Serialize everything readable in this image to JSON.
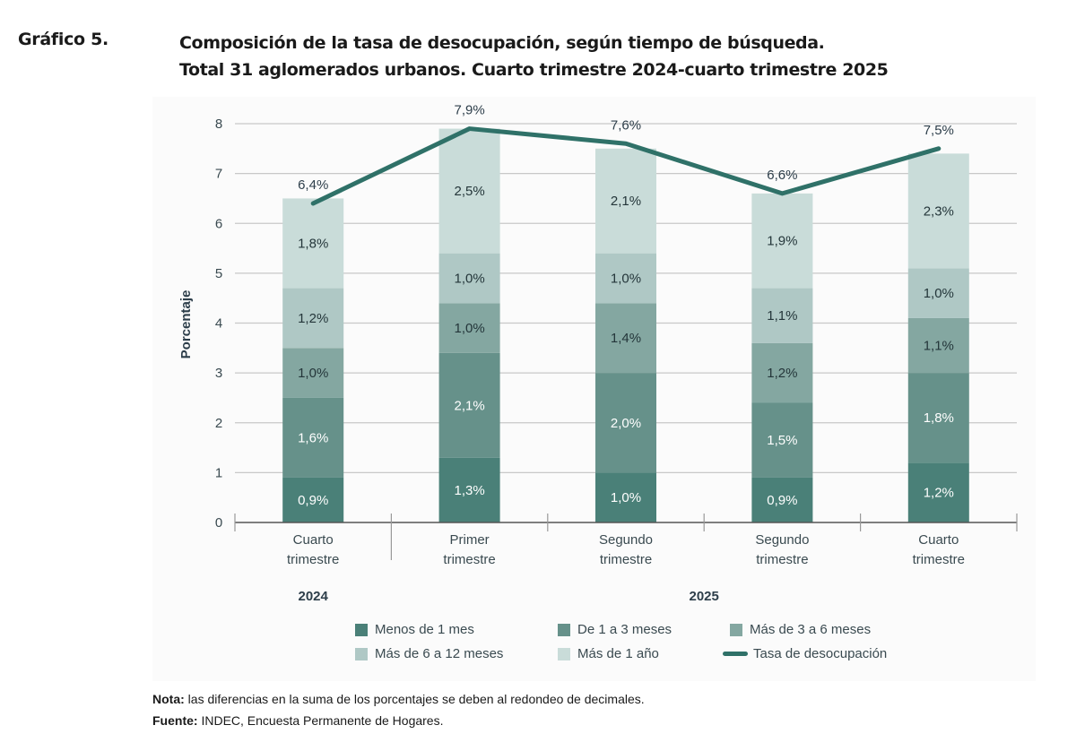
{
  "header": {
    "label": "Gráfico 5.",
    "title_line1": "Composición de la tasa de desocupación, según tiempo de búsqueda.",
    "title_line2": "Total 31 aglomerados urbanos. Cuarto trimestre 2024-cuarto trimestre 2025"
  },
  "chart_data": {
    "type": "bar",
    "stacked": true,
    "title": "Composición de la tasa de desocupación, según tiempo de búsqueda. Total 31 aglomerados urbanos. Cuarto trimestre 2024-cuarto trimestre 2025",
    "xlabel": "",
    "ylabel": "Porcentaje",
    "ylim": [
      0,
      8
    ],
    "yticks": [
      "0",
      "1",
      "2",
      "3",
      "4",
      "5",
      "6",
      "7",
      "8"
    ],
    "grid": true,
    "categories": [
      [
        "Cuarto",
        "trimestre"
      ],
      [
        "Primer",
        "trimestre"
      ],
      [
        "Segundo",
        "trimestre"
      ],
      [
        "Segundo",
        "trimestre"
      ],
      [
        "Cuarto",
        "trimestre"
      ]
    ],
    "year_groups": [
      {
        "label": "2024",
        "span": [
          0,
          0
        ]
      },
      {
        "label": "2025",
        "span": [
          1,
          4
        ]
      }
    ],
    "series": [
      {
        "name": "Menos de 1 mes",
        "color": "#4a8078",
        "label_color": "#ffffff",
        "values": [
          0.9,
          1.3,
          1.0,
          0.9,
          1.2
        ],
        "labels": [
          "0,9%",
          "1,3%",
          "1,0%",
          "0,9%",
          "1,2%"
        ]
      },
      {
        "name": "De 1 a 3 meses",
        "color": "#66918a",
        "label_color": "#ffffff",
        "values": [
          1.6,
          2.1,
          2.0,
          1.5,
          1.8
        ],
        "labels": [
          "1,6%",
          "2,1%",
          "2,0%",
          "1,5%",
          "1,8%"
        ]
      },
      {
        "name": "Más de 3 a 6 meses",
        "color": "#84a7a1",
        "label_color": "#24363a",
        "values": [
          1.0,
          1.0,
          1.4,
          1.2,
          1.1
        ],
        "labels": [
          "1,0%",
          "1,0%",
          "1,4%",
          "1,2%",
          "1,1%"
        ]
      },
      {
        "name": "Más de 6 a 12 meses",
        "color": "#afc8c5",
        "label_color": "#24363a",
        "values": [
          1.2,
          1.0,
          1.0,
          1.1,
          1.0
        ],
        "labels": [
          "1,2%",
          "1,0%",
          "1,0%",
          "1,1%",
          "1,0%"
        ]
      },
      {
        "name": "Más de 1 año",
        "color": "#c9dcd9",
        "label_color": "#24363a",
        "values": [
          1.8,
          2.5,
          2.1,
          1.9,
          2.3
        ],
        "labels": [
          "1,8%",
          "2,5%",
          "2,1%",
          "1,9%",
          "2,3%"
        ]
      }
    ],
    "line": {
      "name": "Tasa de desocupación",
      "color": "#2f7168",
      "values": [
        6.4,
        7.9,
        7.6,
        6.6,
        7.5
      ],
      "labels": [
        "6,4%",
        "7,9%",
        "7,6%",
        "6,6%",
        "7,5%"
      ]
    },
    "legend_position": "bottom"
  },
  "legend": {
    "items": [
      {
        "label": "Menos de 1 mes",
        "color": "#4a8078",
        "kind": "box"
      },
      {
        "label": "De 1 a 3 meses",
        "color": "#66918a",
        "kind": "box"
      },
      {
        "label": "Más de 3 a 6 meses",
        "color": "#84a7a1",
        "kind": "box"
      },
      {
        "label": "Más de 6 a 12 meses",
        "color": "#afc8c5",
        "kind": "box"
      },
      {
        "label": "Más de 1 año",
        "color": "#c9dcd9",
        "kind": "box"
      },
      {
        "label": "Tasa de desocupación",
        "color": "#2f7168",
        "kind": "line"
      }
    ]
  },
  "notes": {
    "nota_label": "Nota:",
    "nota_text": " las diferencias en la suma de los porcentajes se deben al redondeo de decimales.",
    "fuente_label": "Fuente:",
    "fuente_text": " INDEC, Encuesta Permanente de Hogares."
  }
}
